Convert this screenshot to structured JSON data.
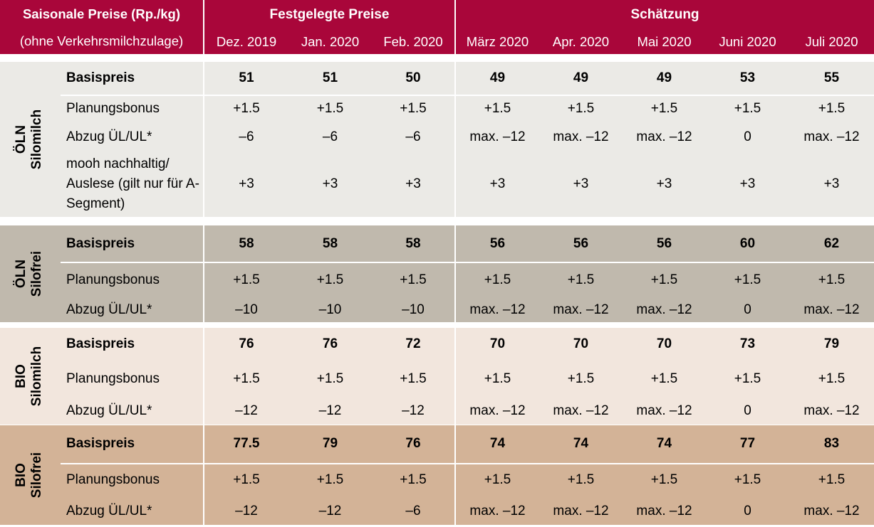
{
  "header": {
    "title": "Saisonale Preise (Rp./kg)",
    "subtitle": "(ohne Verkehrsmilchzulage)",
    "group_fixed": "Festgelegte Preise",
    "group_estimate": "Schätzung",
    "months": [
      "Dez. 2019",
      "Jan. 2020",
      "Feb. 2020",
      "März 2020",
      "Apr. 2020",
      "Mai 2020",
      "Juni 2020",
      "Juli 2020"
    ]
  },
  "colors": {
    "header": "#a9063a",
    "oln_silomilch": "#ebeae6",
    "oln_silofrei": "#c0b9ad",
    "bio_silomilch": "#f2e6dd",
    "bio_silofrei": "#d3b397"
  },
  "sections": [
    {
      "line1": "ÖLN",
      "line2": "Silomilch",
      "rows": [
        {
          "label": "Basispreis",
          "values": [
            "51",
            "51",
            "50",
            "49",
            "49",
            "49",
            "53",
            "55"
          ]
        },
        {
          "label": "Planungsbonus",
          "values": [
            "+1.5",
            "+1.5",
            "+1.5",
            "+1.5",
            "+1.5",
            "+1.5",
            "+1.5",
            "+1.5"
          ]
        },
        {
          "label": "Abzug ÜL/UL*",
          "values": [
            "–6",
            "–6",
            "–6",
            "max. –12",
            "max. –12",
            "max. –12",
            "0",
            "max. –12"
          ]
        },
        {
          "label": "mooh nachhaltig/ Auslese (gilt nur für A-Segment)",
          "values": [
            "+3",
            "+3",
            "+3",
            "+3",
            "+3",
            "+3",
            "+3",
            "+3"
          ]
        }
      ]
    },
    {
      "line1": "ÖLN",
      "line2": "Silofrei",
      "rows": [
        {
          "label": "Basispreis",
          "values": [
            "58",
            "58",
            "58",
            "56",
            "56",
            "56",
            "60",
            "62"
          ]
        },
        {
          "label": "Planungsbonus",
          "values": [
            "+1.5",
            "+1.5",
            "+1.5",
            "+1.5",
            "+1.5",
            "+1.5",
            "+1.5",
            "+1.5"
          ]
        },
        {
          "label": "Abzug ÜL/UL*",
          "values": [
            "–10",
            "–10",
            "–10",
            "max. –12",
            "max. –12",
            "max. –12",
            "0",
            "max. –12"
          ]
        }
      ]
    },
    {
      "line1": "BIO",
      "line2": "Silomilch",
      "rows": [
        {
          "label": "Basispreis",
          "values": [
            "76",
            "76",
            "72",
            "70",
            "70",
            "70",
            "73",
            "79"
          ]
        },
        {
          "label": "Planungsbonus",
          "values": [
            "+1.5",
            "+1.5",
            "+1.5",
            "+1.5",
            "+1.5",
            "+1.5",
            "+1.5",
            "+1.5"
          ]
        },
        {
          "label": "Abzug ÜL/UL*",
          "values": [
            "–12",
            "–12",
            "–12",
            "max. –12",
            "max. –12",
            "max. –12",
            "0",
            "max. –12"
          ]
        }
      ]
    },
    {
      "line1": "BIO",
      "line2": "Silofrei",
      "rows": [
        {
          "label": "Basispreis",
          "values": [
            "77.5",
            "79",
            "76",
            "74",
            "74",
            "74",
            "77",
            "83"
          ]
        },
        {
          "label": "Planungsbonus",
          "values": [
            "+1.5",
            "+1.5",
            "+1.5",
            "+1.5",
            "+1.5",
            "+1.5",
            "+1.5",
            "+1.5"
          ]
        },
        {
          "label": "Abzug ÜL/UL*",
          "values": [
            "–12",
            "–12",
            "–6",
            "max. –12",
            "max. –12",
            "max. –12",
            "0",
            "max. –12"
          ]
        }
      ]
    }
  ]
}
